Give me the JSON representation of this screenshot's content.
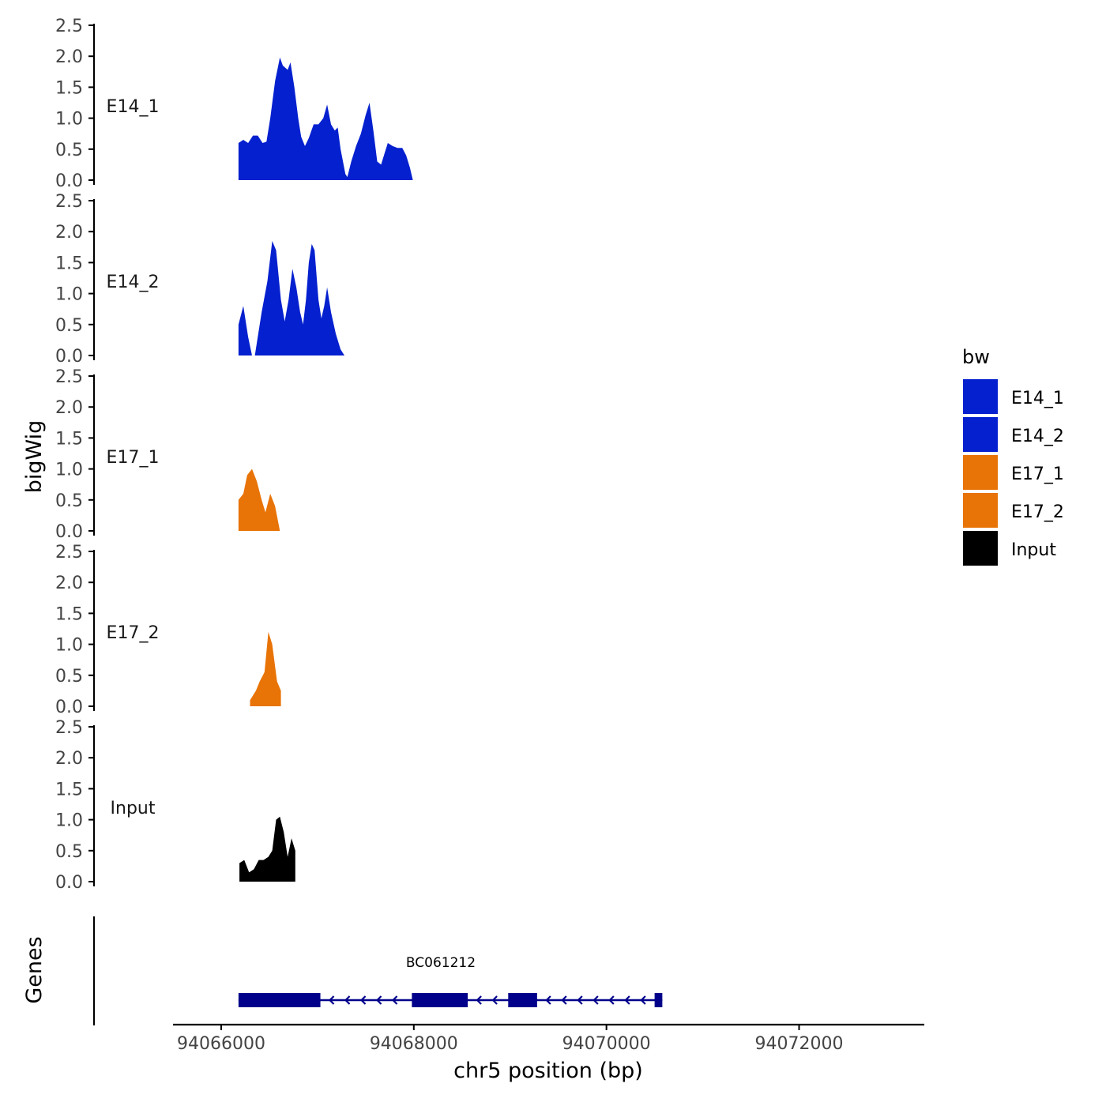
{
  "chart_data": {
    "type": "area",
    "ylabel": "bigWig",
    "genes_label": "Genes",
    "xlabel": "chr5 position (bp)",
    "xlim": [
      94065500,
      94073300
    ],
    "x_ticks": [
      {
        "value": 94066000,
        "label": "94066000"
      },
      {
        "value": 94068000,
        "label": "94068000"
      },
      {
        "value": 94070000,
        "label": "94070000"
      },
      {
        "value": 94072000,
        "label": "94072000"
      }
    ],
    "ylim": [
      0,
      2.5
    ],
    "y_ticks": [
      {
        "value": 0,
        "label": "0.0"
      },
      {
        "value": 0.5,
        "label": "0.5"
      },
      {
        "value": 1,
        "label": "1.0"
      },
      {
        "value": 1.5,
        "label": "1.5"
      },
      {
        "value": 2,
        "label": "2.0"
      },
      {
        "value": 2.5,
        "label": "2.5"
      }
    ],
    "legend": {
      "title": "bw",
      "position": "right",
      "entries": [
        {
          "label": "E14_1",
          "color": "#0420CF"
        },
        {
          "label": "E14_2",
          "color": "#0420CF"
        },
        {
          "label": "E17_1",
          "color": "#E87306"
        },
        {
          "label": "E17_2",
          "color": "#E87306"
        },
        {
          "label": "Input",
          "color": "#000000"
        }
      ]
    },
    "tracks": [
      {
        "name": "E14_1",
        "color": "#0420CF",
        "points": [
          [
            94066180,
            0.6
          ],
          [
            94066230,
            0.65
          ],
          [
            94066280,
            0.6
          ],
          [
            94066330,
            0.72
          ],
          [
            94066380,
            0.72
          ],
          [
            94066430,
            0.6
          ],
          [
            94066470,
            0.62
          ],
          [
            94066510,
            1.0
          ],
          [
            94066560,
            1.6
          ],
          [
            94066610,
            1.98
          ],
          [
            94066640,
            1.85
          ],
          [
            94066690,
            1.78
          ],
          [
            94066720,
            1.9
          ],
          [
            94066760,
            1.5
          ],
          [
            94066800,
            1.0
          ],
          [
            94066830,
            0.7
          ],
          [
            94066870,
            0.55
          ],
          [
            94066910,
            0.68
          ],
          [
            94066960,
            0.9
          ],
          [
            94067010,
            0.9
          ],
          [
            94067060,
            1.0
          ],
          [
            94067100,
            1.22
          ],
          [
            94067140,
            0.9
          ],
          [
            94067180,
            0.8
          ],
          [
            94067210,
            0.85
          ],
          [
            94067240,
            0.5
          ],
          [
            94067290,
            0.1
          ],
          [
            94067310,
            0.05
          ],
          [
            94067350,
            0.3
          ],
          [
            94067400,
            0.55
          ],
          [
            94067450,
            0.75
          ],
          [
            94067500,
            1.05
          ],
          [
            94067540,
            1.25
          ],
          [
            94067580,
            0.8
          ],
          [
            94067620,
            0.3
          ],
          [
            94067660,
            0.25
          ],
          [
            94067700,
            0.45
          ],
          [
            94067730,
            0.6
          ],
          [
            94067780,
            0.55
          ],
          [
            94067830,
            0.52
          ],
          [
            94067880,
            0.52
          ],
          [
            94067920,
            0.4
          ],
          [
            94067960,
            0.2
          ],
          [
            94067990,
            0.0
          ]
        ]
      },
      {
        "name": "E14_2",
        "color": "#0420CF",
        "points": [
          [
            94066180,
            0.5
          ],
          [
            94066230,
            0.8
          ],
          [
            94066280,
            0.3
          ],
          [
            94066320,
            0.0
          ],
          [
            94066350,
            0.0
          ],
          [
            94066420,
            0.7
          ],
          [
            94066480,
            1.2
          ],
          [
            94066530,
            1.85
          ],
          [
            94066570,
            1.7
          ],
          [
            94066620,
            0.9
          ],
          [
            94066660,
            0.55
          ],
          [
            94066700,
            0.9
          ],
          [
            94066740,
            1.4
          ],
          [
            94066780,
            1.1
          ],
          [
            94066820,
            0.7
          ],
          [
            94066850,
            0.5
          ],
          [
            94066880,
            0.9
          ],
          [
            94066910,
            1.5
          ],
          [
            94066940,
            1.8
          ],
          [
            94066970,
            1.7
          ],
          [
            94067010,
            0.9
          ],
          [
            94067040,
            0.6
          ],
          [
            94067070,
            0.8
          ],
          [
            94067100,
            1.1
          ],
          [
            94067140,
            0.7
          ],
          [
            94067190,
            0.35
          ],
          [
            94067240,
            0.1
          ],
          [
            94067280,
            0.0
          ]
        ]
      },
      {
        "name": "E17_1",
        "color": "#E87306",
        "points": [
          [
            94066180,
            0.5
          ],
          [
            94066230,
            0.6
          ],
          [
            94066270,
            0.9
          ],
          [
            94066320,
            1.0
          ],
          [
            94066370,
            0.8
          ],
          [
            94066420,
            0.5
          ],
          [
            94066460,
            0.3
          ],
          [
            94066510,
            0.6
          ],
          [
            94066560,
            0.4
          ],
          [
            94066610,
            0.0
          ]
        ]
      },
      {
        "name": "E17_2",
        "color": "#E87306",
        "points": [
          [
            94066300,
            0.1
          ],
          [
            94066360,
            0.25
          ],
          [
            94066400,
            0.4
          ],
          [
            94066450,
            0.55
          ],
          [
            94066490,
            1.2
          ],
          [
            94066530,
            1.0
          ],
          [
            94066580,
            0.4
          ],
          [
            94066620,
            0.25
          ]
        ]
      },
      {
        "name": "Input",
        "color": "#000000",
        "points": [
          [
            94066190,
            0.3
          ],
          [
            94066240,
            0.35
          ],
          [
            94066290,
            0.15
          ],
          [
            94066340,
            0.2
          ],
          [
            94066390,
            0.35
          ],
          [
            94066440,
            0.35
          ],
          [
            94066490,
            0.4
          ],
          [
            94066530,
            0.5
          ],
          [
            94066570,
            1.0
          ],
          [
            94066610,
            1.05
          ],
          [
            94066650,
            0.8
          ],
          [
            94066690,
            0.4
          ],
          [
            94066730,
            0.7
          ],
          [
            94066770,
            0.5
          ]
        ]
      }
    ],
    "gene": {
      "name": "BC061212",
      "strand": "-",
      "start": 94066180,
      "end": 94070580,
      "color": "#00008B",
      "exons": [
        [
          94066180,
          94067030
        ],
        [
          94067980,
          94068560
        ],
        [
          94068980,
          94069280
        ],
        [
          94070500,
          94070580
        ]
      ]
    }
  }
}
